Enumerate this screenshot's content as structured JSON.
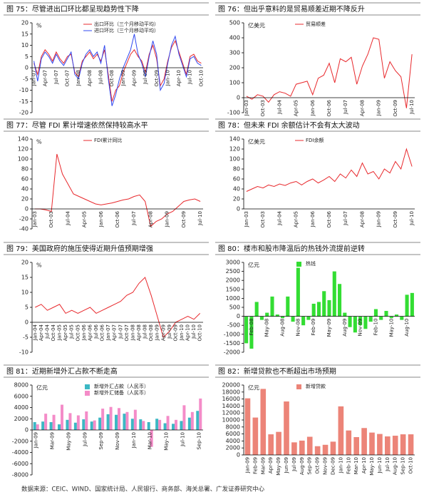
{
  "chart_data": [
    {
      "type": "line",
      "title": "图 75：尽管进出口环比都呈现趋势性下降",
      "y_label": "%",
      "ylim": [
        -20,
        20
      ],
      "yticks": [
        -20,
        -15,
        -10,
        -5,
        0,
        5,
        10,
        15,
        20
      ],
      "legend": "top",
      "categories": [
        "Jan-07",
        null,
        null,
        "Apr-07",
        null,
        null,
        "Jul-07",
        null,
        null,
        "Oct-07",
        null,
        null,
        "Jan-08",
        null,
        null,
        "Apr-08",
        null,
        null,
        "Jul-08",
        null,
        null,
        "Oct-08",
        null,
        null,
        "Jan-09",
        null,
        null,
        "Apr-09",
        null,
        null,
        "Jul-09",
        null,
        null,
        "Oct-09",
        null,
        null,
        "Jan-10",
        null,
        null,
        "Apr-10",
        null,
        null,
        "Jul-10",
        null,
        null,
        "Oct-10"
      ],
      "series": [
        {
          "name": "出口环比（三个月移动平均）",
          "color": "#e8282c",
          "values": [
            2,
            -3,
            5,
            8,
            6,
            3,
            7,
            4,
            2,
            5,
            6,
            -2,
            -4,
            3,
            5,
            7,
            4,
            6,
            3,
            8,
            -3,
            -15,
            -10,
            -8,
            -2,
            2,
            6,
            8,
            5,
            3,
            -2,
            6,
            10,
            4,
            -8,
            -5,
            3,
            9,
            12,
            7,
            2,
            -3,
            5,
            6,
            3,
            2
          ]
        },
        {
          "name": "进口环比（三个月移动平均）",
          "color": "#3048f0",
          "values": [
            3,
            -6,
            4,
            7,
            5,
            2,
            6,
            3,
            1,
            4,
            7,
            -3,
            -5,
            2,
            6,
            8,
            5,
            7,
            2,
            10,
            -5,
            -17,
            -12,
            -5,
            0,
            4,
            8,
            15,
            6,
            2,
            -4,
            5,
            12,
            6,
            -10,
            -7,
            2,
            10,
            14,
            6,
            1,
            -4,
            4,
            5,
            2,
            1
          ]
        }
      ]
    },
    {
      "type": "line",
      "title": "图 76：但出乎意料的是贸易顺差近期不降反升",
      "y_label": "亿美元",
      "ylim": [
        -100,
        500
      ],
      "yticks": [
        -100,
        0,
        100,
        200,
        300,
        400,
        500
      ],
      "legend": "top",
      "categories": [
        "Jan-03",
        null,
        null,
        "Oct-03",
        null,
        null,
        "Jul-04",
        null,
        null,
        "Apr-05",
        null,
        null,
        "Jan-06",
        null,
        null,
        "Oct-06",
        null,
        null,
        "Jul-07",
        null,
        null,
        "Apr-08",
        null,
        null,
        "Jan-09",
        null,
        null,
        "Oct-09",
        null,
        null,
        "Jul-10"
      ],
      "series": [
        {
          "name": "贸易顺差",
          "color": "#e8282c",
          "values": [
            10,
            -10,
            20,
            10,
            -30,
            20,
            40,
            30,
            10,
            90,
            100,
            110,
            20,
            130,
            150,
            230,
            100,
            260,
            240,
            270,
            90,
            210,
            290,
            400,
            390,
            130,
            240,
            180,
            140,
            -70,
            290
          ]
        }
      ]
    },
    {
      "type": "line",
      "title": "图 77：尽管 FDI 累计增速依然保持较高水平",
      "y_label": "%",
      "ylim": [
        -40,
        140
      ],
      "yticks": [
        -40,
        -20,
        0,
        20,
        40,
        60,
        80,
        100,
        120,
        140
      ],
      "legend": "top",
      "categories": [
        "Jan-03",
        null,
        null,
        "Oct-03",
        null,
        null,
        "Jul-04",
        null,
        null,
        "Apr-05",
        null,
        null,
        "Jan-06",
        null,
        null,
        "Oct-06",
        null,
        null,
        "Jul-07",
        null,
        null,
        "Apr-08",
        null,
        null,
        "Jan-09",
        null,
        null,
        "Oct-09",
        null,
        null,
        "Jul-10"
      ],
      "series": [
        {
          "name": "FDI累计同比",
          "color": "#e8282c",
          "values": [
            0,
            0,
            -2,
            -5,
            110,
            70,
            50,
            30,
            25,
            20,
            15,
            10,
            8,
            10,
            12,
            15,
            18,
            20,
            25,
            28,
            15,
            -35,
            -25,
            -20,
            -10,
            -5,
            5,
            15,
            18,
            20,
            15
          ]
        }
      ]
    },
    {
      "type": "line",
      "title": "图 78：但未来 FDI 余额估计不会有太大波动",
      "y_label": "亿美元",
      "ylim": [
        0,
        140
      ],
      "yticks": [
        0,
        20,
        40,
        60,
        80,
        100,
        120,
        140
      ],
      "legend": "top",
      "categories": [
        "Jan-03",
        null,
        null,
        "Oct-03",
        null,
        null,
        "Jul-04",
        null,
        null,
        "Apr-05",
        null,
        null,
        "Jan-06",
        null,
        null,
        "Oct-06",
        null,
        null,
        "Jul-07",
        null,
        null,
        "Apr-08",
        null,
        null,
        "Jan-09",
        null,
        null,
        "Oct-09",
        null,
        null,
        "Jul-10"
      ],
      "series": [
        {
          "name": "FDI余额",
          "color": "#e8282c",
          "values": [
            35,
            40,
            45,
            42,
            48,
            45,
            50,
            47,
            52,
            55,
            48,
            55,
            60,
            52,
            58,
            65,
            55,
            70,
            62,
            78,
            65,
            92,
            70,
            75,
            60,
            80,
            72,
            95,
            80,
            120,
            85
          ]
        }
      ]
    },
    {
      "type": "line",
      "title": "图 79：美国政府的施压使得近期升值预期增强",
      "y_label": "%",
      "ylim": [
        -10,
        20
      ],
      "yticks": [
        -10,
        -5,
        0,
        5,
        10,
        15,
        20
      ],
      "categories": [
        "Jan-04",
        "Apr-04",
        "Jul-04",
        "Oct-04",
        "Jan-05",
        "Apr-05",
        "Jul-05",
        "Oct-05",
        "Jan-06",
        "Apr-06",
        "Jul-06",
        "Oct-06",
        "Jan-07",
        "Apr-07",
        "Jul-07",
        "Oct-07",
        "Jan-08",
        "Apr-08",
        "Jul-08",
        "Oct-08",
        "Jan-09",
        "Apr-09",
        "Jul-09",
        "Oct-09",
        "Jan-10",
        "Apr-10",
        "Jul-10",
        "Oct-10"
      ],
      "series": [
        {
          "color": "#e8282c",
          "values": [
            5,
            6,
            4,
            5,
            6,
            3,
            4,
            3,
            4,
            5,
            3,
            4,
            5,
            6,
            7,
            9,
            10,
            13,
            15,
            9,
            2,
            -5,
            -3,
            0,
            1,
            2,
            1,
            3
          ]
        }
      ]
    },
    {
      "type": "bar",
      "title": "图 80：楼市和股市降温后的热钱外流提前逆转",
      "y_label": "亿元",
      "ylim": [
        -2000,
        3000
      ],
      "yticks": [
        -2000,
        -1500,
        -1000,
        -500,
        0,
        500,
        1000,
        1500,
        2000,
        2500,
        3000
      ],
      "legend": "top",
      "categories": [
        null,
        "Feb-08",
        null,
        null,
        "May-08",
        null,
        null,
        "Aug-08",
        null,
        null,
        "Nov-08",
        null,
        null,
        "Feb-09",
        null,
        null,
        "May-09",
        null,
        null,
        "Aug-09",
        null,
        null,
        "Nov-09",
        null,
        null,
        "Feb-10",
        null,
        null,
        "May-10",
        null,
        null,
        "Aug-10",
        null
      ],
      "series": [
        {
          "name": "热钱",
          "color": "#33dd33",
          "values": [
            -1500,
            -1800,
            800,
            -200,
            200,
            1100,
            100,
            -100,
            1100,
            -300,
            2700,
            -500,
            -200,
            700,
            800,
            1400,
            900,
            2500,
            1800,
            200,
            -600,
            -900,
            -500,
            -700,
            -300,
            400,
            -200,
            300,
            -100,
            100,
            -200,
            1200,
            1300
          ]
        }
      ]
    },
    {
      "type": "bar",
      "title": "图 81：近期新增外汇占款不断走高",
      "y_label": "亿元",
      "ylim": [
        -8000,
        8000
      ],
      "yticks": [
        -8000,
        -6000,
        -4000,
        -2000,
        0,
        2000,
        4000,
        6000,
        8000
      ],
      "legend": "top",
      "categories": [
        "Jan-09",
        null,
        "Mar-09",
        null,
        "May-09",
        null,
        "Jul-09",
        null,
        "Sep-09",
        null,
        "Nov-09",
        null,
        "Jan-10",
        null,
        "Mar-10",
        null,
        "May-10",
        null,
        "Jul-10",
        null,
        "Sep-10"
      ],
      "series": [
        {
          "name": "新增外汇占款（人民币）",
          "color": "#3cb8c4",
          "values": [
            1400,
            1500,
            1400,
            1000,
            1800,
            1300,
            1900,
            1500,
            2200,
            2800,
            2700,
            2900,
            2000,
            1900,
            1400,
            2000,
            1200,
            1100,
            1600,
            2200,
            3400
          ]
        },
        {
          "name": "新增外汇储备（人民币）",
          "color": "#f48cc8",
          "values": [
            1000,
            2900,
            2700,
            4500,
            3000,
            2600,
            3300,
            1700,
            3800,
            4100,
            3900,
            3200,
            3600,
            1600,
            -3000,
            1800,
            2500,
            1800,
            4400,
            3200,
            5600
          ]
        }
      ]
    },
    {
      "type": "bar",
      "title": "图 82：新增贷款也不断超出市场预期",
      "y_label": "亿元",
      "ylim": [
        0,
        20000
      ],
      "yticks": [
        0,
        2000,
        4000,
        6000,
        8000,
        10000,
        12000,
        14000,
        16000,
        18000,
        20000
      ],
      "legend": "top",
      "categories": [
        "Jan-09",
        "Feb-09",
        "Mar-09",
        "Apr-09",
        "May-09",
        "Jun-09",
        "Jul-09",
        "Aug-09",
        "Sep-09",
        "Oct-09",
        "Nov-09",
        "Dec-09",
        "Jan-10",
        "Feb-10",
        "Mar-10",
        "Apr-10",
        "May-10",
        "Jun-10",
        "Jul-10",
        "Aug-10",
        "Sep-10",
        "Oct-10"
      ],
      "series": [
        {
          "name": "新增贷款",
          "color": "#ec8478",
          "values": [
            16200,
            10700,
            18900,
            5900,
            6600,
            15300,
            3600,
            4100,
            5200,
            2500,
            2900,
            3800,
            13900,
            7000,
            5100,
            7700,
            6400,
            6000,
            5300,
            5500,
            5900,
            5900
          ]
        }
      ]
    }
  ],
  "source": "数据来源：CEIC、WIND、国家统计局、人民银行、商务部、海关总署、广发证券研究中心"
}
